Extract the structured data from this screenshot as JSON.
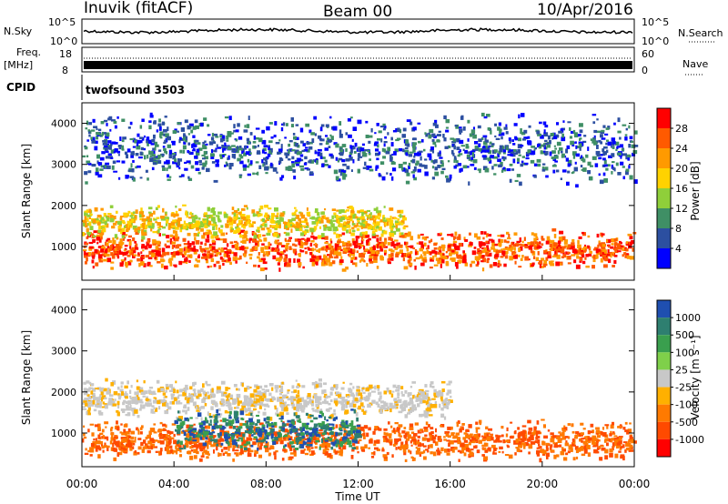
{
  "header": {
    "station": "Inuvik (fitACF)",
    "beam": "Beam 00",
    "date": "10/Apr/2016"
  },
  "top_panels": {
    "nsky_label": "N.Sky",
    "nsky_ticks": [
      "10^5",
      "10^0"
    ],
    "nsearch_label": "N.Search",
    "freq_label_1": "Freq.",
    "freq_label_2": "[MHz]",
    "freq_ticks": [
      "18",
      "8"
    ],
    "nave_label": "Nave",
    "nave_ticks": [
      "60",
      "0"
    ],
    "cpid_label": "CPID",
    "cpid_value": "twofsound 3503"
  },
  "colorbars": {
    "power": {
      "label": "Power [dB]",
      "ticks": [
        "28",
        "24",
        "20",
        "16",
        "12",
        "8",
        "4"
      ],
      "colors": [
        "#ff0000",
        "#ff5a00",
        "#ff9a00",
        "#ffd200",
        "#8fcf3a",
        "#3f8f65",
        "#2c4fa0",
        "#0000ff"
      ]
    },
    "velocity": {
      "label": "Velocity [m s⁻¹]",
      "ticks": [
        "1000",
        "500",
        "100",
        "25",
        "-25",
        "-100",
        "-500",
        "-1000"
      ],
      "colors": [
        "#1f4fb0",
        "#2e7f70",
        "#3a9f4e",
        "#7fd04a",
        "#c8c8c8",
        "#ffb000",
        "#ff7a00",
        "#ff4a00",
        "#ff0000"
      ]
    }
  },
  "chart_data": [
    {
      "type": "heatmap",
      "panel": "power",
      "ylabel": "Slant Range [km]",
      "ylim": [
        180,
        4500
      ],
      "yticks": [
        "4000",
        "3000",
        "2000",
        "1000"
      ],
      "xlim": [
        "00:00",
        "24:00"
      ],
      "echo_bands_km": [
        {
          "start_h": 0,
          "end_h": 24,
          "center_km": 950,
          "width_km": 500,
          "power_db": 22
        },
        {
          "start_h": 0,
          "end_h": 14,
          "center_km": 1650,
          "width_km": 400,
          "power_db": 18
        },
        {
          "start_h": 0,
          "end_h": 24,
          "center_km": 3400,
          "width_km": 900,
          "power_db": 8
        }
      ]
    },
    {
      "type": "heatmap",
      "panel": "velocity",
      "ylabel": "Slant Range [km]",
      "xlabel": "Time UT",
      "ylim": [
        180,
        4500
      ],
      "yticks": [
        "4000",
        "3000",
        "2000",
        "1000"
      ],
      "xticks": [
        "00:00",
        "04:00",
        "08:00",
        "12:00",
        "16:00",
        "20:00",
        "00:00"
      ],
      "xlim": [
        "00:00",
        "24:00"
      ],
      "echo_bands_km": [
        {
          "start_h": 0,
          "end_h": 24,
          "center_km": 850,
          "width_km": 500,
          "velocity": -300
        },
        {
          "start_h": 0,
          "end_h": 16,
          "center_km": 1850,
          "width_km": 500,
          "velocity": 0
        },
        {
          "start_h": 4,
          "end_h": 12,
          "center_km": 1100,
          "width_km": 500,
          "velocity": 200
        }
      ]
    }
  ]
}
